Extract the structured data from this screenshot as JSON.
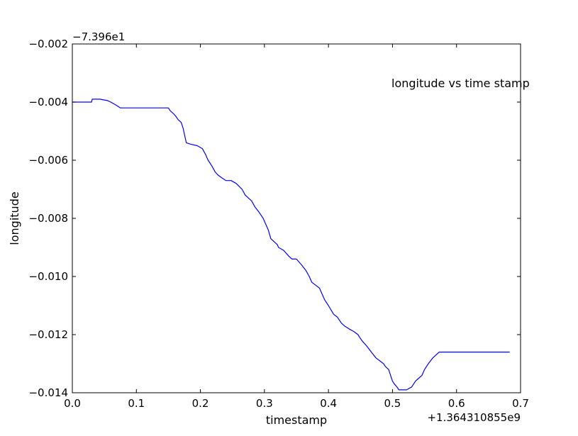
{
  "chart_data": {
    "type": "line",
    "title": "",
    "annotation": "longitude vs time stamp",
    "xlabel": "timestamp",
    "ylabel": "longitude",
    "x_offset_text": "+1.364310855e9",
    "y_offset_text": "−7.396e1",
    "xlim": [
      0.0,
      0.7
    ],
    "ylim": [
      -0.014,
      -0.002
    ],
    "xticks": [
      {
        "value": 0.0,
        "label": "0.0"
      },
      {
        "value": 0.1,
        "label": "0.1"
      },
      {
        "value": 0.2,
        "label": "0.2"
      },
      {
        "value": 0.3,
        "label": "0.3"
      },
      {
        "value": 0.4,
        "label": "0.4"
      },
      {
        "value": 0.5,
        "label": "0.5"
      },
      {
        "value": 0.6,
        "label": "0.6"
      },
      {
        "value": 0.7,
        "label": "0.7"
      }
    ],
    "yticks": [
      {
        "value": -0.002,
        "label": "−0.002"
      },
      {
        "value": -0.004,
        "label": "−0.004"
      },
      {
        "value": -0.006,
        "label": "−0.006"
      },
      {
        "value": -0.008,
        "label": "−0.008"
      },
      {
        "value": -0.01,
        "label": "−0.010"
      },
      {
        "value": -0.012,
        "label": "−0.012"
      },
      {
        "value": -0.014,
        "label": "−0.014"
      }
    ],
    "grid": false,
    "series": [
      {
        "color": "#0000ff",
        "x": [
          0.0,
          0.03,
          0.031,
          0.043,
          0.055,
          0.06,
          0.068,
          0.075,
          0.1,
          0.125,
          0.15,
          0.153,
          0.158,
          0.162,
          0.165,
          0.17,
          0.173,
          0.176,
          0.178,
          0.185,
          0.195,
          0.203,
          0.208,
          0.212,
          0.218,
          0.223,
          0.227,
          0.233,
          0.24,
          0.248,
          0.256,
          0.265,
          0.27,
          0.275,
          0.28,
          0.285,
          0.292,
          0.298,
          0.302,
          0.306,
          0.31,
          0.315,
          0.32,
          0.322,
          0.33,
          0.338,
          0.343,
          0.35,
          0.358,
          0.365,
          0.37,
          0.374,
          0.38,
          0.386,
          0.39,
          0.394,
          0.4,
          0.408,
          0.414,
          0.42,
          0.425,
          0.432,
          0.44,
          0.446,
          0.452,
          0.46,
          0.467,
          0.474,
          0.48,
          0.486,
          0.489,
          0.494,
          0.497,
          0.5,
          0.503,
          0.507,
          0.51,
          0.522,
          0.53,
          0.536,
          0.541,
          0.546,
          0.55,
          0.556,
          0.563,
          0.568,
          0.573,
          0.577,
          0.585,
          0.593,
          0.6,
          0.605,
          0.61,
          0.615,
          0.63,
          0.65,
          0.67,
          0.683
        ],
        "y": [
          -0.004,
          -0.004,
          -0.0039,
          -0.0039,
          -0.00395,
          -0.004,
          -0.0041,
          -0.0042,
          -0.0042,
          -0.0042,
          -0.0042,
          -0.0043,
          -0.0044,
          -0.0045,
          -0.0046,
          -0.0047,
          -0.0049,
          -0.0052,
          -0.0054,
          -0.00545,
          -0.0055,
          -0.0056,
          -0.0058,
          -0.006,
          -0.0062,
          -0.0064,
          -0.0065,
          -0.0066,
          -0.0067,
          -0.0067,
          -0.0068,
          -0.007,
          -0.0072,
          -0.0073,
          -0.0074,
          -0.0076,
          -0.0078,
          -0.008,
          -0.0082,
          -0.0084,
          -0.0087,
          -0.0088,
          -0.0089,
          -0.009,
          -0.0091,
          -0.0093,
          -0.0094,
          -0.0094,
          -0.0096,
          -0.0098,
          -0.01,
          -0.0102,
          -0.0103,
          -0.0104,
          -0.0106,
          -0.0108,
          -0.011,
          -0.0113,
          -0.0114,
          -0.0116,
          -0.0117,
          -0.0118,
          -0.0119,
          -0.012,
          -0.0122,
          -0.0124,
          -0.0126,
          -0.0128,
          -0.0129,
          -0.013,
          -0.0131,
          -0.0132,
          -0.0134,
          -0.0136,
          -0.0137,
          -0.0138,
          -0.0139,
          -0.0139,
          -0.0138,
          -0.0136,
          -0.0135,
          -0.0134,
          -0.0132,
          -0.013,
          -0.0128,
          -0.0127,
          -0.0126,
          -0.0126,
          -0.0126,
          -0.0126,
          -0.0126,
          -0.0126,
          -0.0126,
          -0.0126,
          -0.0126,
          -0.0126,
          -0.0126,
          -0.0126
        ]
      }
    ]
  }
}
